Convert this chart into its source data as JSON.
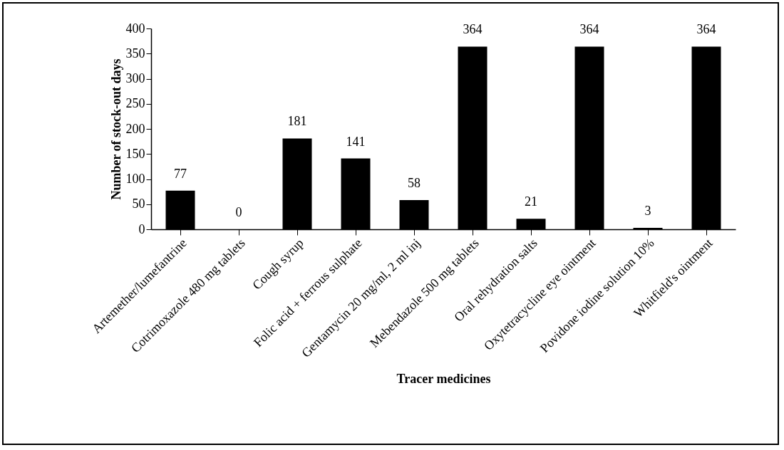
{
  "chart_data": {
    "type": "bar",
    "xlabel": "Tracer medicines",
    "ylabel": "Number  of stock-out days",
    "categories": [
      "Artemether/lumefantrine",
      "Cotrimoxazole 480 mg tablets",
      "Cough syrup",
      "Folic acid + ferrous sulphate",
      "Gentamycin 20 mg/ml, 2 ml inj",
      "Mebendazole 500 mg tablets",
      "Oral rehydration salts",
      "Oxytetracycline eye ointment",
      "Povidone iodine solution 10%",
      "Whitfield's ointment"
    ],
    "values": [
      77,
      0,
      181,
      141,
      58,
      364,
      21,
      364,
      3,
      364
    ],
    "color": "#000000",
    "ylim": [
      0,
      400
    ],
    "yticks": [
      0,
      50,
      100,
      150,
      200,
      250,
      300,
      350,
      400
    ],
    "grid": false,
    "data_labels": true
  }
}
